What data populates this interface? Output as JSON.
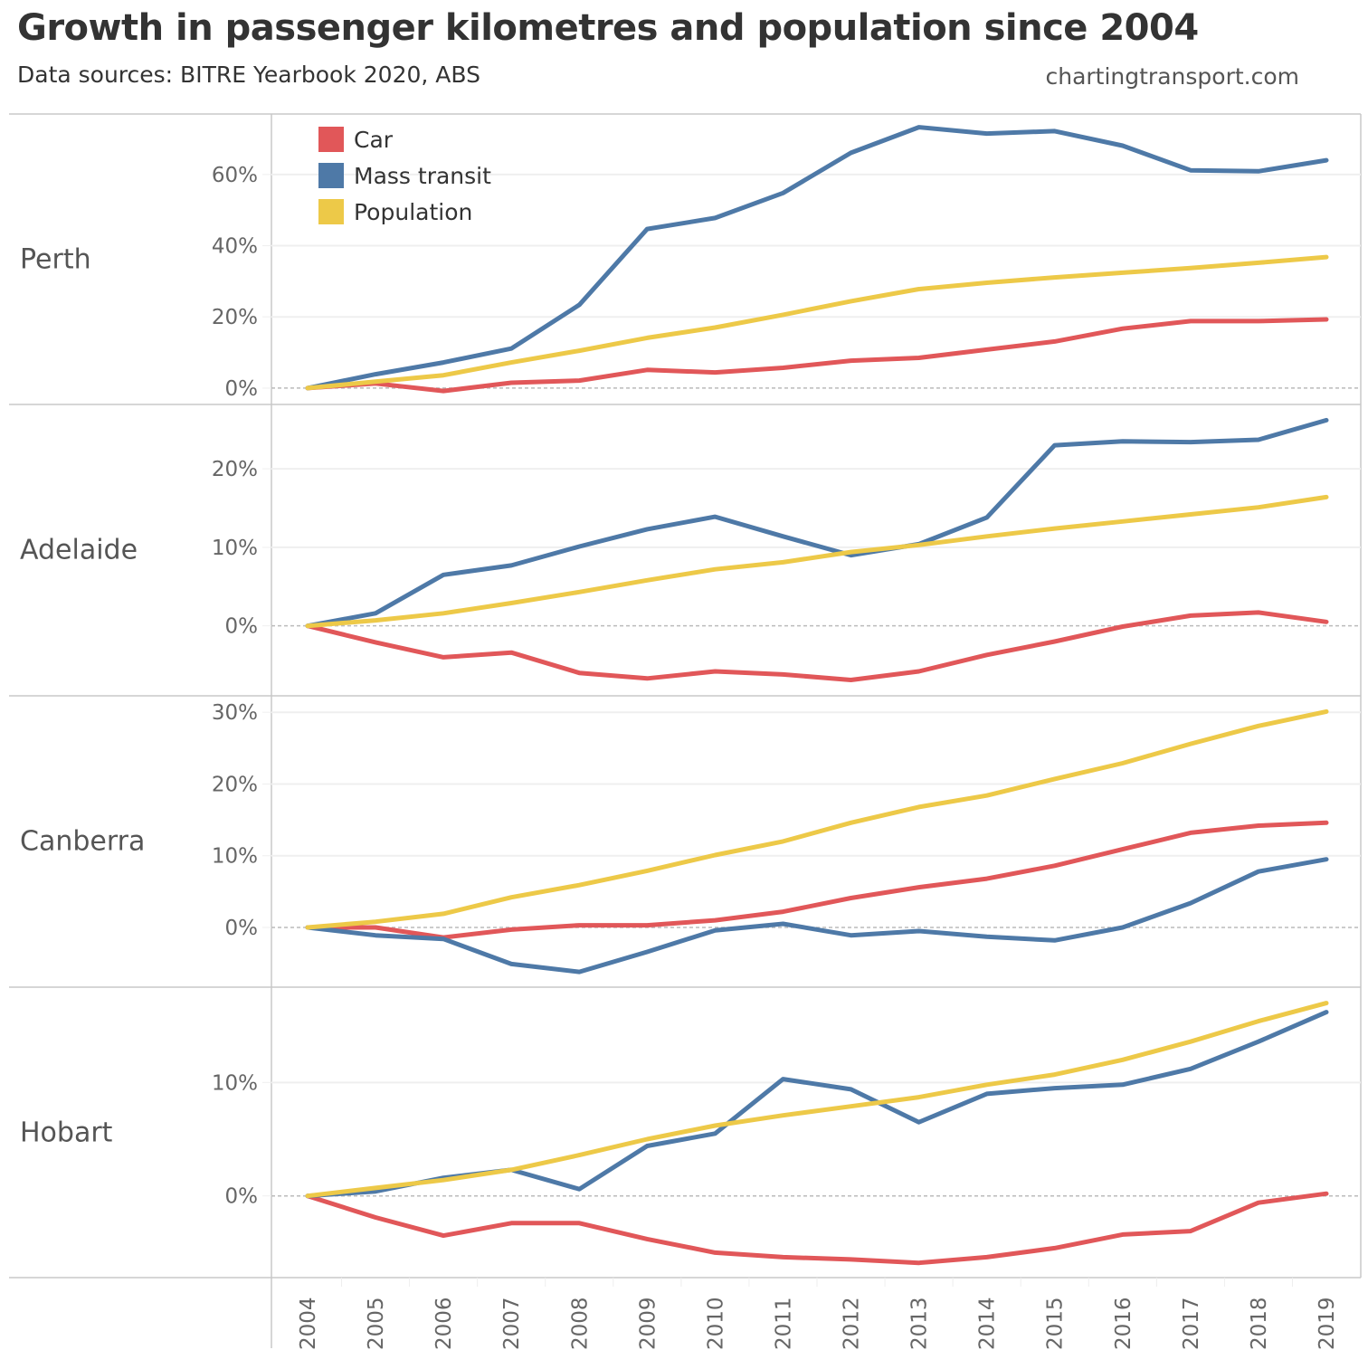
{
  "header": {
    "title": "Growth in passenger kilometres and population since 2004",
    "subtitle": "Data sources: BITRE Yearbook 2020, ABS",
    "credit": "chartingtransport.com"
  },
  "chart_data": {
    "type": "line",
    "title": "Growth in passenger kilometres and population since 2004",
    "subtitle": "Data sources: BITRE Yearbook 2020, ABS",
    "xlabel": "",
    "ylabel": "",
    "x": [
      2004,
      2005,
      2006,
      2007,
      2008,
      2009,
      2010,
      2011,
      2012,
      2013,
      2014,
      2015,
      2016,
      2017,
      2018,
      2019
    ],
    "legend": {
      "placement": "top-left",
      "entries": [
        {
          "name": "Car",
          "color": "#e15759"
        },
        {
          "name": "Mass transit",
          "color": "#4e79a7"
        },
        {
          "name": "Population",
          "color": "#edc948"
        }
      ]
    },
    "grid": true,
    "zero_line": "dashed",
    "panels": [
      {
        "name": "Perth",
        "ylim": [
          -4.6,
          77
        ],
        "yticks": [
          0,
          20,
          40,
          60
        ],
        "ytick_labels": [
          "0%",
          "20%",
          "40%",
          "60%"
        ],
        "series": [
          {
            "name": "Car",
            "values": [
              0,
              1.3,
              -0.8,
              1.5,
              2.1,
              5.1,
              4.4,
              5.7,
              7.7,
              8.5,
              10.8,
              13.1,
              16.7,
              18.8,
              18.8,
              19.3
            ]
          },
          {
            "name": "Mass transit",
            "values": [
              0,
              3.9,
              7.2,
              11.1,
              23.4,
              44.7,
              47.8,
              54.8,
              66.1,
              73.3,
              71.5,
              72.2,
              68.1,
              61.2,
              60.9,
              64.0
            ]
          },
          {
            "name": "Population",
            "values": [
              0,
              1.8,
              3.6,
              7.2,
              10.5,
              14.1,
              17.0,
              20.6,
              24.4,
              27.8,
              29.6,
              31.1,
              32.4,
              33.7,
              35.2,
              36.8
            ]
          }
        ]
      },
      {
        "name": "Adelaide",
        "ylim": [
          -8.8,
          28.2
        ],
        "yticks": [
          0,
          10,
          20
        ],
        "ytick_labels": [
          "0%",
          "10%",
          "20%"
        ],
        "series": [
          {
            "name": "Car",
            "values": [
              0,
              -2.1,
              -4.0,
              -3.4,
              -6.0,
              -6.7,
              -5.8,
              -6.2,
              -6.9,
              -5.8,
              -3.7,
              -2.0,
              -0.1,
              1.3,
              1.7,
              0.5
            ]
          },
          {
            "name": "Mass transit",
            "values": [
              0,
              1.6,
              6.5,
              7.7,
              10.1,
              12.3,
              13.9,
              11.4,
              9.0,
              10.4,
              13.8,
              23.0,
              23.5,
              23.4,
              23.7,
              26.2
            ]
          },
          {
            "name": "Population",
            "values": [
              0,
              0.7,
              1.6,
              2.9,
              4.3,
              5.8,
              7.2,
              8.1,
              9.4,
              10.3,
              11.4,
              12.4,
              13.3,
              14.2,
              15.1,
              16.4
            ]
          }
        ]
      },
      {
        "name": "Canberra",
        "ylim": [
          -8.2,
          32.3
        ],
        "yticks": [
          0,
          10,
          20,
          30
        ],
        "ytick_labels": [
          "0%",
          "10%",
          "20%",
          "30%"
        ],
        "series": [
          {
            "name": "Car",
            "values": [
              0,
              0,
              -1.4,
              -0.3,
              0.3,
              0.3,
              1.0,
              2.2,
              4.1,
              5.6,
              6.8,
              8.6,
              10.9,
              13.2,
              14.2,
              14.6
            ]
          },
          {
            "name": "Mass transit",
            "values": [
              0,
              -1.1,
              -1.6,
              -5.1,
              -6.2,
              -3.4,
              -0.4,
              0.5,
              -1.1,
              -0.5,
              -1.3,
              -1.8,
              0,
              3.4,
              7.8,
              9.5
            ]
          },
          {
            "name": "Population",
            "values": [
              0,
              0.8,
              1.9,
              4.2,
              5.9,
              7.9,
              10.1,
              12.0,
              14.6,
              16.8,
              18.4,
              20.7,
              22.9,
              25.6,
              28.1,
              30.1
            ]
          }
        ]
      },
      {
        "name": "Hobart",
        "ylim": [
          -7.2,
          18.4
        ],
        "yticks": [
          0,
          10
        ],
        "ytick_labels": [
          "0%",
          "10%"
        ],
        "series": [
          {
            "name": "Car",
            "values": [
              0,
              -1.9,
              -3.5,
              -2.4,
              -2.4,
              -3.8,
              -5.0,
              -5.4,
              -5.6,
              -5.9,
              -5.4,
              -4.6,
              -3.4,
              -3.1,
              -0.6,
              0.2
            ]
          },
          {
            "name": "Mass transit",
            "values": [
              0,
              0.4,
              1.6,
              2.3,
              0.6,
              4.4,
              5.5,
              10.3,
              9.4,
              6.5,
              9.0,
              9.5,
              9.8,
              11.2,
              13.6,
              16.2
            ]
          },
          {
            "name": "Population",
            "values": [
              0,
              0.7,
              1.4,
              2.3,
              3.6,
              5.0,
              6.2,
              7.1,
              7.9,
              8.7,
              9.8,
              10.7,
              12.0,
              13.6,
              15.4,
              17.0
            ]
          }
        ]
      }
    ]
  }
}
